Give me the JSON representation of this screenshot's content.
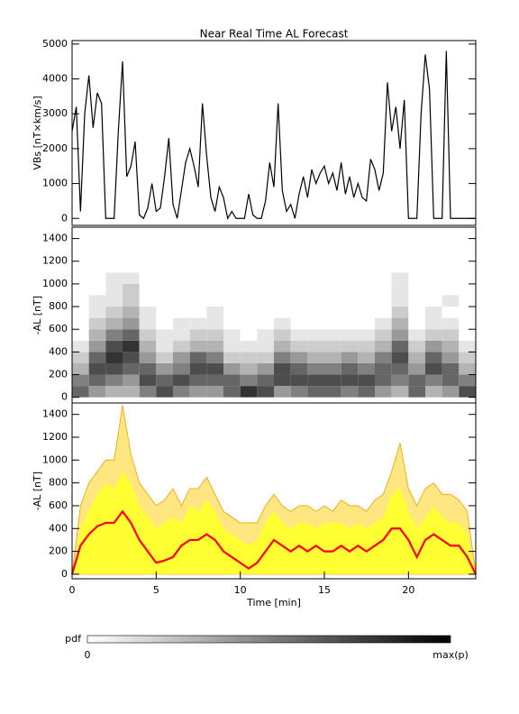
{
  "chart_data": [
    {
      "type": "line",
      "title": "Near Real Time AL Forecast",
      "ylabel": "VBs [nT×km/s]",
      "xlim": [
        0,
        24
      ],
      "ylim": [
        -200,
        5100
      ],
      "yticks": [
        0,
        1000,
        2000,
        3000,
        4000,
        5000
      ],
      "x": [
        0,
        0.25,
        0.5,
        0.75,
        1,
        1.25,
        1.5,
        1.75,
        2,
        2.25,
        2.5,
        2.75,
        3,
        3.25,
        3.5,
        3.75,
        4,
        4.25,
        4.5,
        4.75,
        5,
        5.25,
        5.5,
        5.75,
        6,
        6.25,
        6.5,
        6.75,
        7,
        7.25,
        7.5,
        7.75,
        8,
        8.25,
        8.5,
        8.75,
        9,
        9.25,
        9.5,
        9.75,
        10,
        10.25,
        10.5,
        10.75,
        11,
        11.25,
        11.5,
        11.75,
        12,
        12.25,
        12.5,
        12.75,
        13,
        13.25,
        13.5,
        13.75,
        14,
        14.25,
        14.5,
        14.75,
        15,
        15.25,
        15.5,
        15.75,
        16,
        16.25,
        16.5,
        16.75,
        17,
        17.25,
        17.5,
        17.75,
        18,
        18.25,
        18.5,
        18.75,
        19,
        19.25,
        19.5,
        19.75,
        20,
        20.25,
        20.5,
        20.75,
        21,
        21.25,
        21.5,
        21.75,
        22,
        22.25,
        22.5,
        22.75,
        23,
        23.25,
        23.5,
        23.75,
        24
      ],
      "series": [
        {
          "color": "#000000",
          "values": [
            2500,
            3200,
            200,
            3000,
            4100,
            2600,
            3600,
            3300,
            0,
            0,
            0,
            2500,
            4500,
            1200,
            1500,
            2200,
            100,
            0,
            300,
            1000,
            200,
            300,
            1200,
            2300,
            400,
            0,
            800,
            1600,
            2000,
            1500,
            900,
            3300,
            1800,
            600,
            200,
            900,
            600,
            0,
            200,
            0,
            0,
            0,
            700,
            100,
            0,
            0,
            500,
            1600,
            900,
            3300,
            800,
            200,
            400,
            0,
            700,
            1200,
            600,
            1400,
            1000,
            1300,
            1500,
            1000,
            1300,
            800,
            1600,
            700,
            1200,
            600,
            1000,
            600,
            500,
            1700,
            1400,
            800,
            1300,
            3900,
            2500,
            3200,
            2000,
            3400,
            0,
            0,
            0,
            3000,
            4700,
            3700,
            0,
            0,
            0,
            4800,
            0,
            0,
            0,
            0,
            0,
            0,
            0
          ]
        }
      ]
    },
    {
      "type": "heatmap",
      "ylabel": "-AL [nT]",
      "xlim": [
        0,
        24
      ],
      "ylim": [
        -50,
        1500
      ],
      "yticks": [
        0,
        200,
        400,
        600,
        800,
        1000,
        1200,
        1400
      ],
      "x_edges": [
        0,
        1,
        2,
        3,
        4,
        5,
        6,
        7,
        8,
        9,
        10,
        11,
        12,
        13,
        14,
        15,
        16,
        17,
        18,
        19,
        20,
        21,
        22,
        23,
        24
      ],
      "y_edges": [
        0,
        100,
        200,
        300,
        400,
        500,
        600,
        700,
        800,
        900,
        1000,
        1100,
        1200
      ],
      "z": [
        [
          0.6,
          0.5,
          0.3,
          0.2,
          0.1,
          0,
          0,
          0,
          0,
          0,
          0,
          0
        ],
        [
          0.4,
          0.6,
          0.7,
          0.6,
          0.4,
          0.3,
          0.2,
          0.1,
          0.1,
          0,
          0,
          0
        ],
        [
          0.3,
          0.5,
          0.7,
          0.8,
          0.7,
          0.5,
          0.3,
          0.2,
          0.1,
          0.1,
          0.1,
          0
        ],
        [
          0.3,
          0.4,
          0.6,
          0.7,
          0.8,
          0.6,
          0.4,
          0.3,
          0.2,
          0.2,
          0.1,
          0
        ],
        [
          0.5,
          0.7,
          0.6,
          0.4,
          0.3,
          0.2,
          0.1,
          0.1,
          0,
          0,
          0,
          0
        ],
        [
          0.7,
          0.6,
          0.4,
          0.2,
          0.1,
          0.1,
          0,
          0,
          0,
          0,
          0,
          0
        ],
        [
          0.5,
          0.7,
          0.5,
          0.4,
          0.2,
          0.1,
          0.1,
          0,
          0,
          0,
          0,
          0
        ],
        [
          0.4,
          0.6,
          0.7,
          0.6,
          0.3,
          0.2,
          0.1,
          0,
          0,
          0,
          0,
          0
        ],
        [
          0.4,
          0.6,
          0.7,
          0.5,
          0.3,
          0.2,
          0.1,
          0.1,
          0,
          0,
          0,
          0
        ],
        [
          0.6,
          0.6,
          0.4,
          0.2,
          0.1,
          0.1,
          0,
          0,
          0,
          0,
          0,
          0
        ],
        [
          0.8,
          0.5,
          0.3,
          0.2,
          0.1,
          0,
          0,
          0,
          0,
          0,
          0,
          0
        ],
        [
          0.7,
          0.6,
          0.4,
          0.2,
          0.1,
          0.1,
          0,
          0,
          0,
          0,
          0,
          0
        ],
        [
          0.4,
          0.7,
          0.7,
          0.5,
          0.3,
          0.2,
          0.1,
          0,
          0,
          0,
          0,
          0
        ],
        [
          0.5,
          0.7,
          0.6,
          0.4,
          0.2,
          0.1,
          0,
          0,
          0,
          0,
          0,
          0
        ],
        [
          0.6,
          0.7,
          0.5,
          0.3,
          0.2,
          0.1,
          0,
          0,
          0,
          0,
          0,
          0
        ],
        [
          0.6,
          0.7,
          0.5,
          0.3,
          0.2,
          0.1,
          0,
          0,
          0,
          0,
          0,
          0
        ],
        [
          0.5,
          0.7,
          0.6,
          0.4,
          0.2,
          0.1,
          0,
          0,
          0,
          0,
          0,
          0
        ],
        [
          0.6,
          0.7,
          0.5,
          0.3,
          0.2,
          0.1,
          0,
          0,
          0,
          0,
          0,
          0
        ],
        [
          0.4,
          0.6,
          0.6,
          0.5,
          0.3,
          0.2,
          0.1,
          0,
          0,
          0,
          0,
          0
        ],
        [
          0.3,
          0.5,
          0.6,
          0.7,
          0.6,
          0.4,
          0.3,
          0.2,
          0.1,
          0.1,
          0.1,
          0
        ],
        [
          0.6,
          0.6,
          0.4,
          0.3,
          0.2,
          0.1,
          0,
          0,
          0,
          0,
          0,
          0
        ],
        [
          0.3,
          0.5,
          0.7,
          0.6,
          0.4,
          0.2,
          0.1,
          0.1,
          0,
          0,
          0,
          0
        ],
        [
          0.4,
          0.6,
          0.6,
          0.4,
          0.3,
          0.2,
          0.1,
          0,
          0.1,
          0,
          0,
          0
        ],
        [
          0.7,
          0.5,
          0.3,
          0.2,
          0.1,
          0,
          0,
          0,
          0,
          0,
          0,
          0
        ]
      ]
    },
    {
      "type": "band",
      "ylabel": "-AL [nT]",
      "xlabel": "Time [min]",
      "xlim": [
        0,
        24
      ],
      "ylim": [
        -40,
        1500
      ],
      "yticks": [
        0,
        200,
        400,
        600,
        800,
        1000,
        1200,
        1400
      ],
      "xticks": [
        0,
        5,
        10,
        15,
        20
      ],
      "x": [
        0,
        0.5,
        1,
        1.5,
        2,
        2.5,
        3,
        3.5,
        4,
        4.5,
        5,
        5.5,
        6,
        6.5,
        7,
        7.5,
        8,
        8.5,
        9,
        9.5,
        10,
        10.5,
        11,
        11.5,
        12,
        12.5,
        13,
        13.5,
        14,
        14.5,
        15,
        15.5,
        16,
        16.5,
        17,
        17.5,
        18,
        18.5,
        19,
        19.5,
        20,
        20.5,
        21,
        21.5,
        22,
        22.5,
        23,
        23.5,
        24
      ],
      "series": [
        {
          "color": "#ffe680",
          "edge": "#f0a000",
          "values": [
            0,
            600,
            800,
            900,
            1000,
            1000,
            1480,
            1050,
            800,
            700,
            600,
            650,
            750,
            600,
            750,
            750,
            850,
            700,
            550,
            500,
            450,
            450,
            450,
            600,
            700,
            600,
            550,
            600,
            600,
            550,
            600,
            550,
            650,
            600,
            600,
            550,
            650,
            700,
            900,
            1150,
            750,
            600,
            750,
            800,
            700,
            700,
            650,
            550,
            0
          ]
        },
        {
          "color": "#ffff33",
          "values": [
            0,
            400,
            550,
            700,
            800,
            750,
            900,
            800,
            600,
            500,
            400,
            450,
            500,
            450,
            600,
            550,
            650,
            550,
            400,
            350,
            300,
            250,
            300,
            450,
            550,
            450,
            400,
            450,
            450,
            400,
            450,
            450,
            450,
            400,
            450,
            400,
            450,
            500,
            700,
            750,
            550,
            400,
            500,
            600,
            500,
            450,
            450,
            350,
            0
          ]
        },
        {
          "color": "#ff0000",
          "values": [
            0,
            250,
            350,
            420,
            450,
            450,
            550,
            450,
            300,
            200,
            100,
            120,
            150,
            250,
            300,
            300,
            350,
            300,
            200,
            150,
            100,
            50,
            100,
            200,
            300,
            250,
            200,
            250,
            200,
            250,
            200,
            200,
            250,
            200,
            250,
            200,
            250,
            300,
            400,
            400,
            300,
            150,
            300,
            350,
            300,
            250,
            250,
            150,
            0
          ]
        }
      ]
    }
  ],
  "colorbar": {
    "label": "pdf",
    "min_label": "0",
    "max_label": "max(p)"
  }
}
